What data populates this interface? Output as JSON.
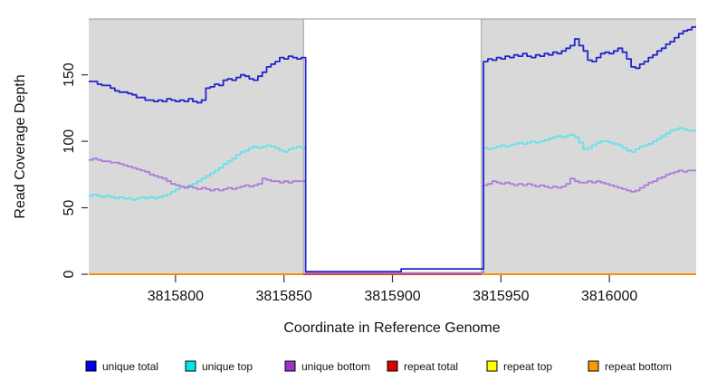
{
  "figure": {
    "xlabel": "Coordinate in Reference Genome",
    "ylabel": "Read Coverage Depth"
  },
  "chart_data": {
    "type": "line",
    "subtype": "step",
    "title": "",
    "xlabel": "Coordinate in Reference Genome",
    "ylabel": "Read Coverage Depth",
    "xlim": [
      3815760,
      3816040
    ],
    "ylim": [
      0,
      192
    ],
    "x_ticks": [
      3815800,
      3815850,
      3815900,
      3815950,
      3816000
    ],
    "y_ticks": [
      0,
      50,
      100,
      150
    ],
    "grid": false,
    "legend_position": "bottom",
    "panel_background": "#D9D9D9",
    "mask_region": {
      "x_start": 3815859,
      "x_end": 3815941,
      "fill": "#FFFFFF",
      "border": "#9A9A9A"
    },
    "x_start": 3815760,
    "x_step": 2,
    "series": [
      {
        "name": "unique total",
        "color": "#2323CE",
        "legend_color": "#0000EE",
        "values": [
          145,
          145,
          143,
          142,
          142,
          140,
          138,
          137,
          137,
          136,
          135,
          133,
          133,
          131,
          131,
          130,
          131,
          130,
          132,
          131,
          130,
          131,
          130,
          132,
          130,
          129,
          131,
          140,
          141,
          143,
          142,
          146,
          147,
          146,
          148,
          150,
          149,
          147,
          146,
          149,
          152,
          156,
          158,
          160,
          163,
          162,
          164,
          163,
          162,
          163,
          2,
          2,
          2,
          2,
          2,
          2,
          2,
          2,
          2,
          2,
          2,
          2,
          2,
          2,
          2,
          2,
          2,
          2,
          2,
          2,
          2,
          2,
          4,
          4,
          4,
          4,
          4,
          4,
          4,
          4,
          4,
          4,
          4,
          4,
          4,
          4,
          4,
          4,
          4,
          4,
          4,
          160,
          162,
          161,
          163,
          162,
          164,
          163,
          165,
          164,
          166,
          164,
          163,
          165,
          164,
          166,
          165,
          167,
          166,
          168,
          170,
          172,
          177,
          172,
          168,
          161,
          160,
          163,
          166,
          167,
          166,
          168,
          170,
          167,
          162,
          156,
          155,
          158,
          160,
          163,
          165,
          168,
          170,
          173,
          175,
          178,
          181,
          183,
          184,
          186,
          186
        ]
      },
      {
        "name": "unique top",
        "color": "#63E3E6",
        "legend_color": "#00E5E5",
        "values": [
          59,
          60,
          59,
          58,
          59,
          58,
          57,
          58,
          57,
          57,
          56,
          57,
          58,
          57,
          58,
          57,
          58,
          59,
          60,
          62,
          64,
          66,
          66,
          67,
          68,
          70,
          72,
          74,
          76,
          78,
          80,
          83,
          85,
          87,
          90,
          92,
          93,
          95,
          96,
          95,
          96,
          97,
          96,
          95,
          93,
          92,
          94,
          95,
          96,
          95,
          1,
          1,
          1,
          1,
          1,
          1,
          1,
          1,
          1,
          1,
          1,
          1,
          1,
          1,
          1,
          1,
          1,
          1,
          1,
          1,
          1,
          1,
          1,
          1,
          1,
          1,
          1,
          1,
          1,
          1,
          1,
          1,
          1,
          1,
          1,
          1,
          1,
          1,
          1,
          1,
          1,
          95,
          94,
          95,
          96,
          97,
          96,
          97,
          98,
          99,
          98,
          99,
          100,
          99,
          100,
          101,
          102,
          103,
          104,
          103,
          104,
          105,
          103,
          99,
          94,
          95,
          97,
          99,
          100,
          100,
          99,
          98,
          97,
          95,
          93,
          92,
          94,
          96,
          97,
          98,
          100,
          102,
          104,
          106,
          108,
          109,
          110,
          109,
          108,
          108,
          108
        ]
      },
      {
        "name": "unique bottom",
        "color": "#AC7CD9",
        "legend_color": "#9933CC",
        "values": [
          86,
          87,
          86,
          85,
          85,
          84,
          84,
          83,
          82,
          81,
          80,
          79,
          78,
          77,
          75,
          74,
          73,
          72,
          70,
          68,
          67,
          66,
          65,
          66,
          65,
          64,
          65,
          64,
          63,
          64,
          63,
          64,
          65,
          64,
          65,
          66,
          67,
          66,
          67,
          68,
          72,
          71,
          70,
          70,
          69,
          70,
          69,
          70,
          70,
          70,
          1,
          1,
          1,
          1,
          1,
          1,
          1,
          1,
          1,
          1,
          1,
          1,
          1,
          1,
          1,
          1,
          1,
          1,
          1,
          1,
          1,
          1,
          1,
          1,
          1,
          1,
          1,
          1,
          1,
          1,
          1,
          1,
          1,
          1,
          1,
          1,
          1,
          1,
          1,
          1,
          1,
          67,
          68,
          70,
          69,
          68,
          69,
          68,
          67,
          68,
          67,
          68,
          67,
          66,
          67,
          66,
          65,
          66,
          65,
          66,
          68,
          72,
          70,
          69,
          69,
          70,
          69,
          70,
          69,
          68,
          67,
          66,
          65,
          64,
          63,
          62,
          63,
          65,
          67,
          69,
          70,
          72,
          73,
          75,
          76,
          77,
          78,
          77,
          78,
          78,
          78
        ]
      },
      {
        "name": "repeat total",
        "color": "#DD2222",
        "legend_color": "#DD0000",
        "const_value": 0
      },
      {
        "name": "repeat top",
        "color": "#FFFF00",
        "legend_color": "#FFFF00",
        "const_value": 0
      },
      {
        "name": "repeat bottom",
        "color": "#FF9900",
        "legend_color": "#FF9900",
        "const_value": 0
      }
    ]
  }
}
